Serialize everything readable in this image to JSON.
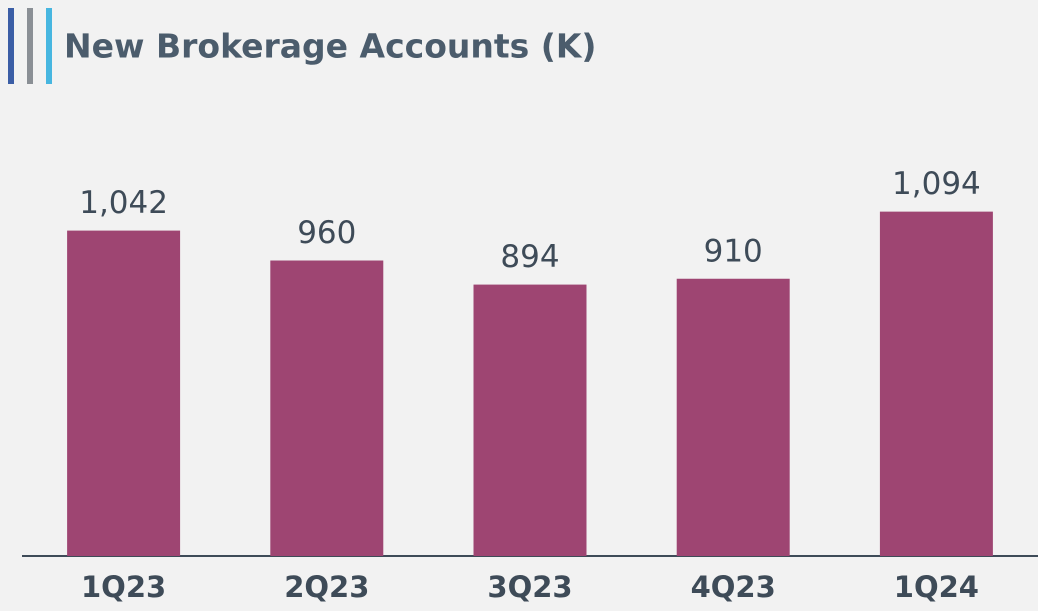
{
  "chart_data": {
    "type": "bar",
    "title": "New Brokerage Accounts (K)",
    "categories": [
      "1Q23",
      "2Q23",
      "3Q23",
      "4Q23",
      "1Q24"
    ],
    "values": [
      1042,
      960,
      894,
      910,
      1094
    ],
    "value_labels": [
      "1,042",
      "960",
      "894",
      "910",
      "1,094"
    ],
    "color": "#9e4572",
    "ylim": [
      150,
      1400
    ]
  }
}
